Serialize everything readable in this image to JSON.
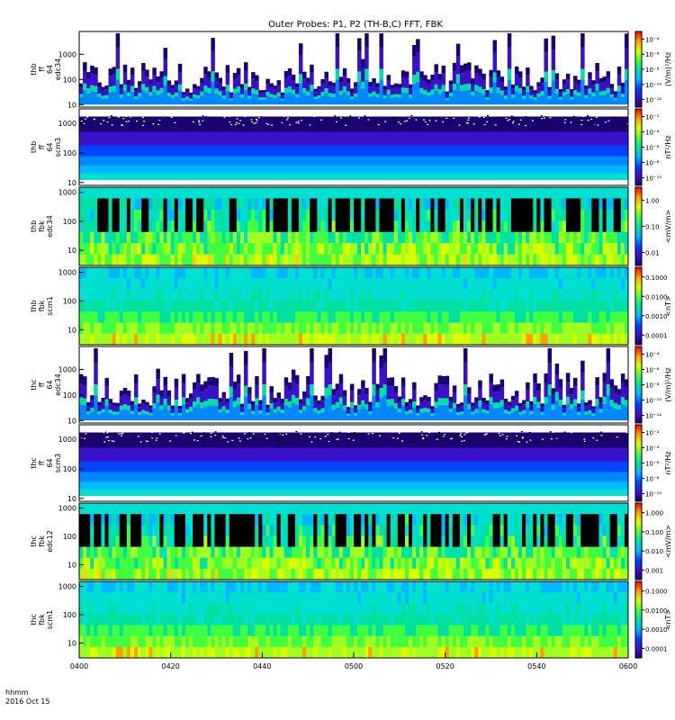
{
  "title": "Outer Probes: P1, P2 (TH-B,C) FFT, FBK",
  "x_axis": {
    "ticks": [
      "0400",
      "0420",
      "0440",
      "0500",
      "0520",
      "0540",
      "0600"
    ],
    "label_line1": "hhmm",
    "label_line2": "2016 Oct 15"
  },
  "chart_data": {
    "type": "heatmap",
    "time_range": [
      "0400",
      "0600"
    ],
    "panels": [
      {
        "id": "thb-ff-e",
        "label": [
          "thb",
          "ff",
          "64",
          "edc34"
        ],
        "yticks": [
          "10",
          "100",
          "1000"
        ],
        "ylog": true,
        "yrange": [
          8,
          8000
        ],
        "cbar_ticks": [
          "10⁻¹²",
          "10⁻¹⁰",
          "10⁻⁸",
          "10⁻⁶",
          "10⁻⁴"
        ],
        "cbar_label": "(V/m)²/Hz",
        "style": "electric-spectra",
        "white_above_fraction": 0.55
      },
      {
        "id": "thb-ff-b",
        "label": [
          "thb",
          "ff",
          "64",
          "scm3"
        ],
        "yticks": [
          "10",
          "100",
          "1000"
        ],
        "ylog": true,
        "yrange": [
          8,
          3000
        ],
        "cbar_ticks": [
          "10⁻¹⁰",
          "10⁻⁸",
          "10⁻⁶",
          "10⁻⁴",
          "10⁻²"
        ],
        "cbar_label": "nT²/Hz",
        "style": "magnetic-spectra"
      },
      {
        "id": "thb-fbk-e",
        "label": [
          "thb",
          "fbk",
          "edc34"
        ],
        "yticks": [
          "10",
          "100",
          "1000"
        ],
        "ylog": true,
        "yrange": [
          3,
          1500
        ],
        "cbar_ticks": [
          "0.01",
          "0.10",
          "1.00"
        ],
        "cbar_label": "<mV/m>",
        "style": "fbk-e"
      },
      {
        "id": "thb-fbk-b",
        "label": [
          "thb",
          "fbk",
          "scm1"
        ],
        "yticks": [
          "10",
          "100",
          "1000"
        ],
        "ylog": true,
        "yrange": [
          3,
          1500
        ],
        "cbar_ticks": [
          "0.0001",
          "0.0010",
          "0.0100",
          "0.1000"
        ],
        "cbar_label": "<nT>",
        "style": "fbk-b"
      },
      {
        "id": "thc-ff-e",
        "label": [
          "thc",
          "ff",
          "64",
          "edc34"
        ],
        "yticks": [
          "10",
          "100",
          "1000"
        ],
        "ylog": true,
        "yrange": [
          8,
          8000
        ],
        "cbar_ticks": [
          "10⁻¹²",
          "10⁻¹⁰",
          "10⁻⁸",
          "10⁻⁶",
          "10⁻⁴"
        ],
        "cbar_label": "(V/m)²/Hz",
        "style": "electric-spectra",
        "white_above_fraction": 0.5
      },
      {
        "id": "thc-ff-b",
        "label": [
          "thc",
          "ff",
          "64",
          "scm3"
        ],
        "yticks": [
          "10",
          "100",
          "1000"
        ],
        "ylog": true,
        "yrange": [
          8,
          3000
        ],
        "cbar_ticks": [
          "10⁻¹⁰",
          "10⁻⁸",
          "10⁻⁶",
          "10⁻⁴",
          "10⁻²"
        ],
        "cbar_label": "nT²/Hz",
        "style": "magnetic-spectra"
      },
      {
        "id": "thc-fbk-e",
        "label": [
          "thc",
          "fbk",
          "edc12"
        ],
        "yticks": [
          "10",
          "100",
          "1000"
        ],
        "ylog": true,
        "yrange": [
          3,
          1500
        ],
        "cbar_ticks": [
          "0.001",
          "0.010",
          "0.100",
          "1.000"
        ],
        "cbar_label": "<mV/m>",
        "style": "fbk-e"
      },
      {
        "id": "thc-fbk-b",
        "label": [
          "thc",
          "fbk",
          "scm1"
        ],
        "yticks": [
          "10",
          "100",
          "1000"
        ],
        "ylog": true,
        "yrange": [
          3,
          1500
        ],
        "cbar_ticks": [
          "0.0001",
          "0.0010",
          "0.0100",
          "0.1000"
        ],
        "cbar_label": "<nT>",
        "style": "fbk-b"
      }
    ]
  }
}
